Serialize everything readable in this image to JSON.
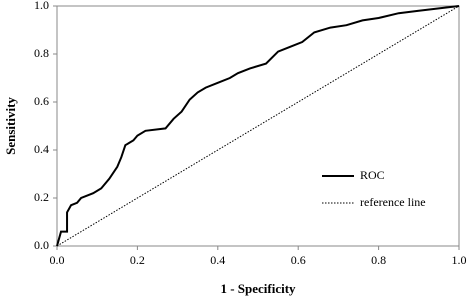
{
  "chart_data": {
    "type": "line",
    "x_label": "1 - Specificity",
    "y_label": "Sensitivity",
    "xlim": [
      0,
      1
    ],
    "ylim": [
      0,
      1
    ],
    "xticks": [
      {
        "value": 0,
        "label": "0.0"
      },
      {
        "value": 0.2,
        "label": "0.2"
      },
      {
        "value": 0.4,
        "label": "0.4"
      },
      {
        "value": 0.6,
        "label": "0.6"
      },
      {
        "value": 0.8,
        "label": "0.8"
      },
      {
        "value": 1,
        "label": "1.0"
      }
    ],
    "yticks": [
      {
        "value": 0,
        "label": "0.0"
      },
      {
        "value": 0.2,
        "label": "0.2"
      },
      {
        "value": 0.4,
        "label": "0.4"
      },
      {
        "value": 0.6,
        "label": "0.6"
      },
      {
        "value": 0.8,
        "label": "0.8"
      },
      {
        "value": 1,
        "label": "1.0"
      }
    ],
    "legend": "lower right",
    "series": [
      {
        "name": "ROC",
        "color": "#000000",
        "style": "solid",
        "x": [
          0,
          0.005,
          0.01,
          0.025,
          0.025,
          0.035,
          0.05,
          0.06,
          0.09,
          0.11,
          0.13,
          0.15,
          0.16,
          0.17,
          0.19,
          0.2,
          0.22,
          0.27,
          0.29,
          0.31,
          0.33,
          0.35,
          0.37,
          0.4,
          0.43,
          0.45,
          0.48,
          0.52,
          0.55,
          0.58,
          0.61,
          0.64,
          0.68,
          0.72,
          0.76,
          0.8,
          0.85,
          0.9,
          0.95,
          1
        ],
        "values": [
          0,
          0.03,
          0.06,
          0.06,
          0.14,
          0.17,
          0.18,
          0.2,
          0.22,
          0.24,
          0.28,
          0.33,
          0.37,
          0.42,
          0.44,
          0.46,
          0.48,
          0.49,
          0.53,
          0.56,
          0.61,
          0.64,
          0.66,
          0.68,
          0.7,
          0.72,
          0.74,
          0.76,
          0.81,
          0.83,
          0.85,
          0.89,
          0.91,
          0.92,
          0.94,
          0.95,
          0.97,
          0.98,
          0.99,
          1
        ]
      },
      {
        "name": "reference line",
        "color": "#000000",
        "style": "dotted",
        "x": [
          0,
          1
        ],
        "values": [
          0,
          1
        ]
      }
    ]
  }
}
